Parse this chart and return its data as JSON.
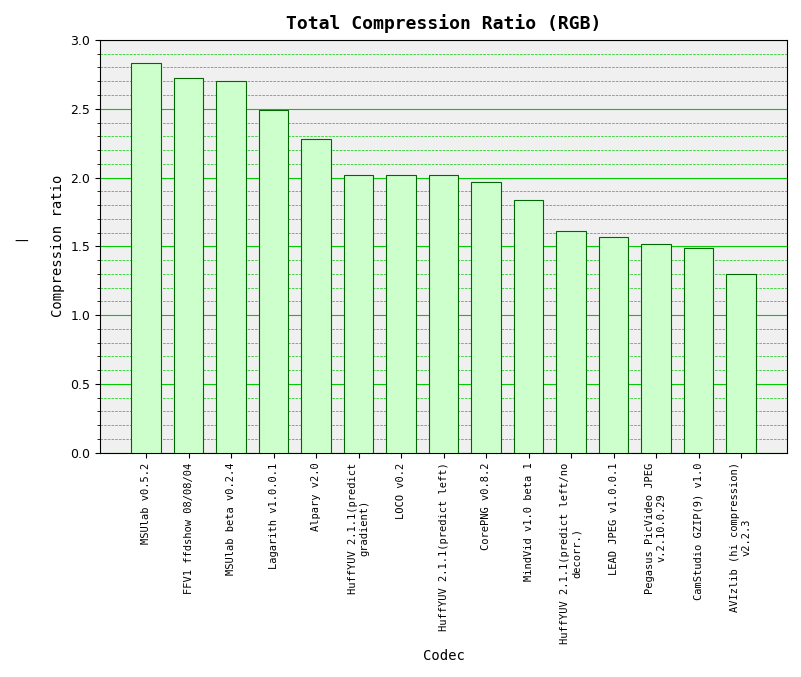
{
  "title": "Total Compression Ratio (RGB)",
  "xlabel": "Codec",
  "ylabel": "Compression ratio",
  "categories": [
    "MSUlab v0.5.2",
    "FFV1 ffdshow 08/08/04",
    "MSUlab beta v0.2.4",
    "Lagarith v1.0.0.1",
    "Alpary v2.0",
    "HuffYUV 2.1.1(predict\ngradient)",
    "LOCO v0.2",
    "HuffYUV 2.1.1(predict left)",
    "CorePNG v0.8.2",
    "MindVid v1.0 beta 1",
    "HuffYUV 2.1.1(predict left/no\ndecorr.)",
    "LEAD JPEG v1.0.0.1",
    "Pegasus PicVideo JPEG\nv.2.10.0.29",
    "CamStudio GZIP(9) v1.0",
    "AVIzlib (hi compression)\nv2.2.3"
  ],
  "values": [
    2.83,
    2.72,
    2.7,
    2.49,
    2.28,
    2.02,
    2.02,
    2.02,
    1.97,
    1.84,
    1.61,
    1.57,
    1.52,
    1.49,
    1.3
  ],
  "bar_color": "#ccffcc",
  "bar_edge_color": "#006600",
  "bg_color": "#ffffff",
  "plot_bg_color": "#f0f0f0",
  "grid_color_major": "#00cc00",
  "grid_color_minor": "#00cc00",
  "ylim": [
    0,
    3.0
  ],
  "yticks": [
    0,
    0.5,
    1.0,
    1.5,
    2.0,
    2.5,
    3.0
  ],
  "bar_width": 0.7,
  "title_fontsize": 13,
  "axis_label_fontsize": 10,
  "tick_fontsize": 9,
  "xtick_fontsize": 7.5
}
